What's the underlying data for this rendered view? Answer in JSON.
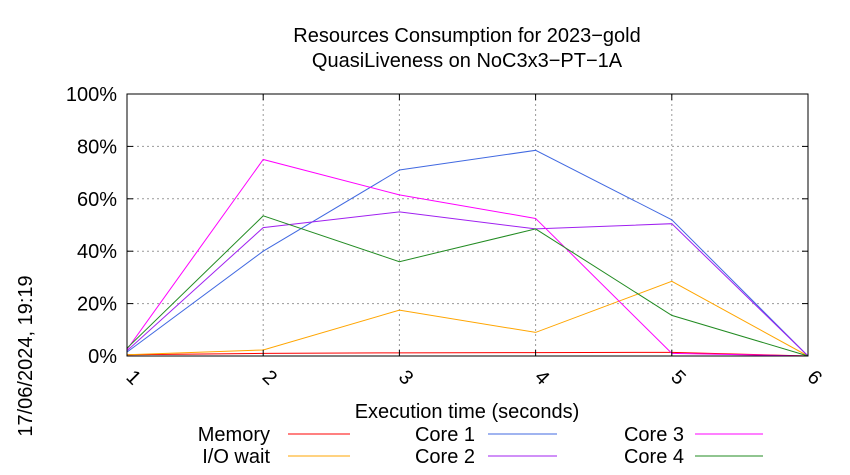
{
  "chart_data": {
    "type": "line",
    "title": [
      "Resources Consumption for 2023−gold",
      "QuasiLiveness on NoC3x3−PT−1A"
    ],
    "xlabel": "Execution time (seconds)",
    "ylabel": "",
    "side_label": "17/06/2024, 19:19",
    "xlim": [
      1,
      6
    ],
    "ylim": [
      0,
      100
    ],
    "x_ticks": [
      "1",
      "2",
      "3",
      "4",
      "5",
      "6"
    ],
    "y_ticks": [
      "0%",
      "20%",
      "40%",
      "60%",
      "80%",
      "100%"
    ],
    "grid": true,
    "legend_position": "bottom",
    "x": [
      1,
      2,
      3,
      4,
      5,
      6
    ],
    "series": [
      {
        "name": "Memory",
        "color": "#ff0000",
        "values": [
          0.5,
          1.0,
          1.2,
          1.3,
          1.4,
          0
        ]
      },
      {
        "name": "I/O wait",
        "color": "#ffa500",
        "values": [
          0.5,
          2.3,
          17.5,
          9.0,
          28.5,
          0
        ]
      },
      {
        "name": "Core 1",
        "color": "#4169e1",
        "values": [
          1.5,
          40.0,
          71.0,
          78.5,
          52.0,
          0
        ]
      },
      {
        "name": "Core 2",
        "color": "#a020f0",
        "values": [
          2.0,
          49.0,
          55.0,
          48.5,
          50.5,
          0
        ]
      },
      {
        "name": "Core 3",
        "color": "#ff00ff",
        "values": [
          2.5,
          75.0,
          61.5,
          52.5,
          1.0,
          0
        ]
      },
      {
        "name": "Core 4",
        "color": "#228b22",
        "values": [
          3.0,
          53.5,
          36.0,
          48.5,
          15.5,
          0
        ]
      }
    ]
  }
}
